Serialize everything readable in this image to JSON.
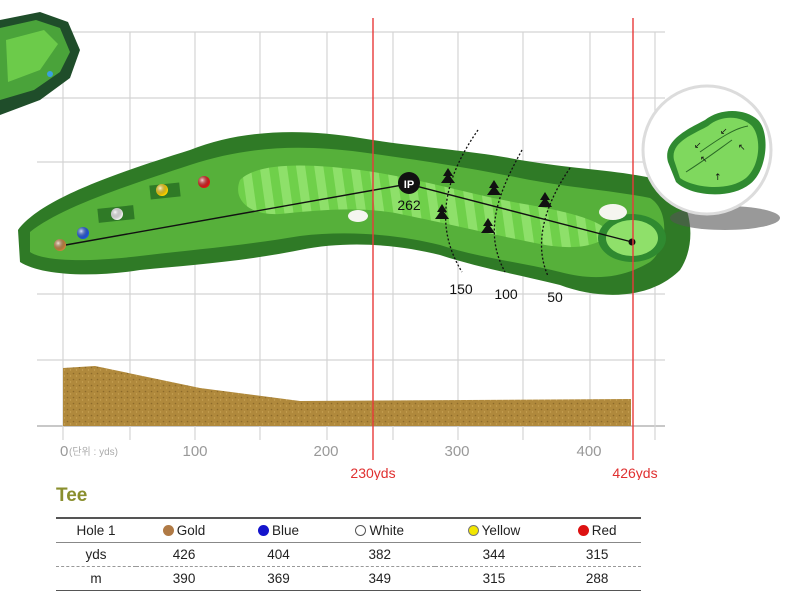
{
  "axis": {
    "ticks": [
      "0",
      "100",
      "200",
      "300",
      "400"
    ],
    "unit_label": "(단위 : yds)"
  },
  "markers": {
    "ip_label": "IP",
    "ip_distance": "262",
    "layup_label": "230yds",
    "total_label": "426yds"
  },
  "distance_markers": [
    "150",
    "100",
    "50"
  ],
  "tee": {
    "title": "Tee",
    "row_header": "Hole 1",
    "columns": [
      {
        "name": "Gold",
        "color": "#b07a45"
      },
      {
        "name": "Blue",
        "color": "#1414cc"
      },
      {
        "name": "White",
        "color": "#ffffff"
      },
      {
        "name": "Yellow",
        "color": "#f2e600"
      },
      {
        "name": "Red",
        "color": "#dd1111"
      }
    ],
    "rows": [
      {
        "label": "yds",
        "values": [
          "426",
          "404",
          "382",
          "344",
          "315"
        ]
      },
      {
        "label": "m",
        "values": [
          "390",
          "369",
          "349",
          "315",
          "288"
        ]
      }
    ]
  }
}
